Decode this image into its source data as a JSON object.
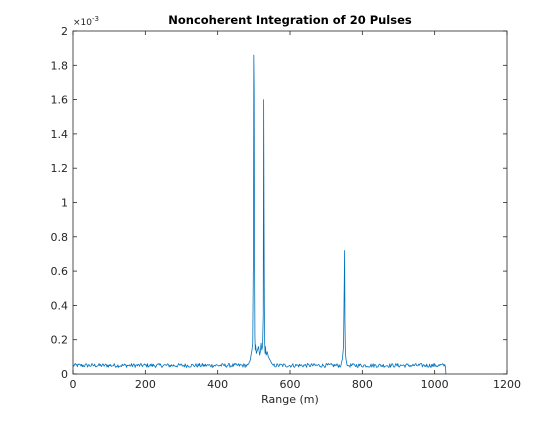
{
  "chart_data": {
    "type": "line",
    "title": "Noncoherent Integration of 20 Pulses",
    "xlabel": "Range (m)",
    "ylabel": "",
    "xlim": [
      0,
      1200
    ],
    "ylim": [
      0,
      0.002
    ],
    "xticks": [
      0,
      200,
      400,
      600,
      800,
      1000,
      1200
    ],
    "xtick_labels": [
      "0",
      "200",
      "400",
      "600",
      "800",
      "1000",
      "1200"
    ],
    "yticks": [
      0,
      0.0002,
      0.0004,
      0.0006,
      0.0008,
      0.001,
      0.0012,
      0.0014,
      0.0016,
      0.0018,
      0.002
    ],
    "ytick_labels": [
      "0",
      "0.2",
      "0.4",
      "0.6",
      "0.8",
      "1",
      "1.2",
      "1.4",
      "1.6",
      "1.8",
      "2"
    ],
    "y_exponent_label": "×10",
    "y_exponent_power": "-3",
    "grid": false,
    "legend": false,
    "series": [
      {
        "color": "#0072bd",
        "noise_floor": 5e-05,
        "noise_amplitude": 1.2e-05,
        "x_end": 1030,
        "x": [
          490,
          495,
          497,
          499,
          500,
          501,
          502,
          503,
          504,
          505,
          507,
          510,
          513,
          516,
          518,
          520,
          522,
          524,
          526,
          527,
          528,
          529,
          530,
          531,
          532,
          534,
          537,
          540,
          545,
          550,
          745,
          748,
          750,
          751,
          752,
          753,
          754,
          756,
          758
        ],
        "y": [
          8e-05,
          0.00014,
          0.00018,
          0.00067,
          0.00186,
          0.00165,
          0.00068,
          0.00022,
          0.00014,
          0.00017,
          0.00012,
          0.00014,
          0.00016,
          0.00011,
          0.00013,
          0.00018,
          0.00014,
          0.00016,
          0.00034,
          0.0016,
          0.00095,
          0.0004,
          0.00018,
          0.00012,
          0.00016,
          0.00011,
          0.00013,
          0.0001,
          8e-05,
          6e-05,
          9e-05,
          0.00016,
          0.00053,
          0.00072,
          0.0003,
          0.00015,
          0.0001,
          7e-05,
          5e-05
        ]
      }
    ]
  }
}
